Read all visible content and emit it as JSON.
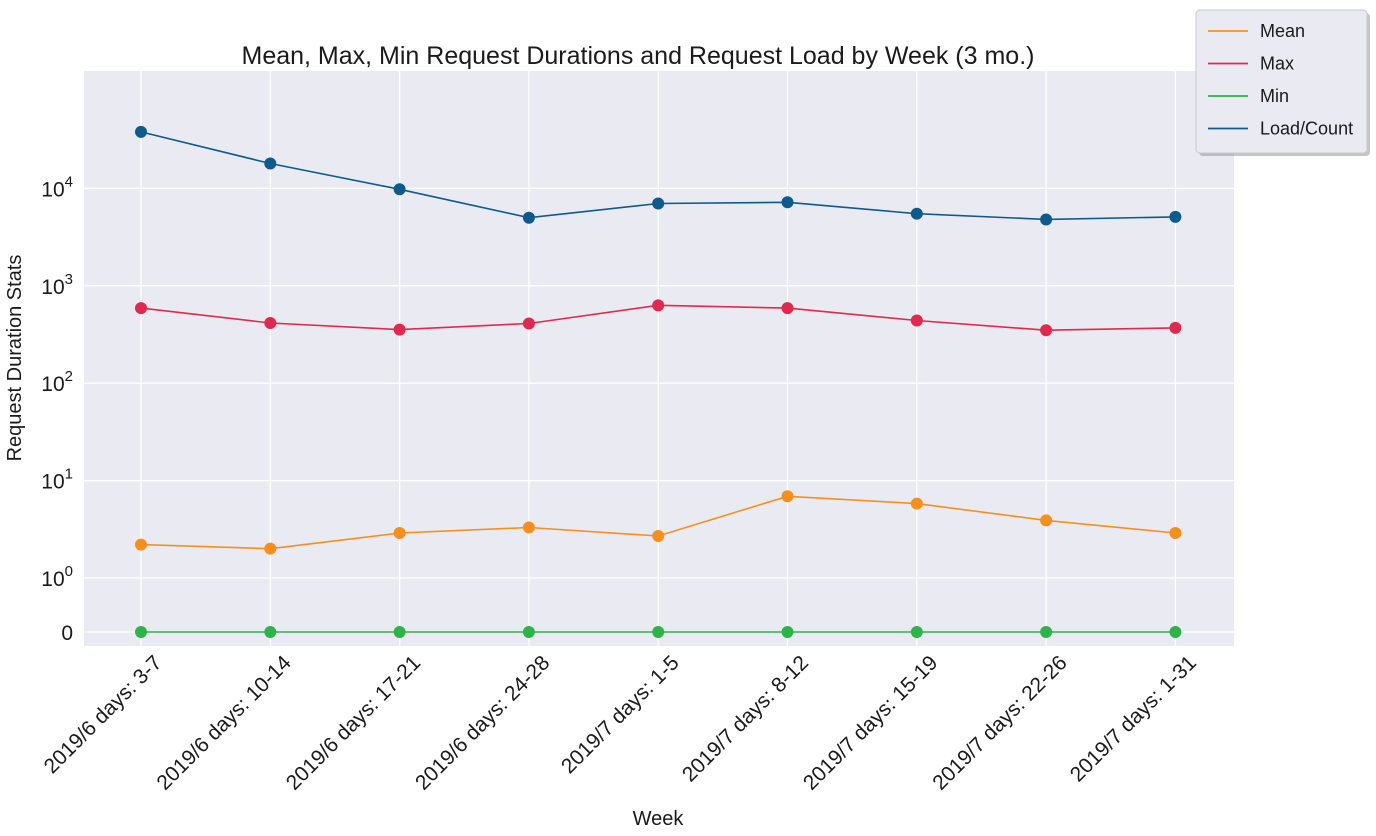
{
  "chart_data": {
    "type": "line",
    "title": "Mean, Max, Min Request Durations and Request Load by Week (3 mo.)",
    "xlabel": "Week",
    "ylabel": "Request Duration Stats",
    "yscale": "symlog",
    "y_ticks": [
      0,
      1,
      10,
      100,
      1000,
      10000
    ],
    "y_tick_labels": [
      {
        "base": "0",
        "exp": ""
      },
      {
        "base": "10",
        "exp": "0"
      },
      {
        "base": "10",
        "exp": "1"
      },
      {
        "base": "10",
        "exp": "2"
      },
      {
        "base": "10",
        "exp": "3"
      },
      {
        "base": "10",
        "exp": "4"
      }
    ],
    "categories": [
      "2019/6 days: 3-7",
      "2019/6 days: 10-14",
      "2019/6 days: 17-21",
      "2019/6 days: 24-28",
      "2019/7 days: 1-5",
      "2019/7 days: 8-12",
      "2019/7 days: 15-19",
      "2019/7 days: 22-26",
      "2019/7 days: 1-31"
    ],
    "grid": true,
    "legend_position": "top-right",
    "series": [
      {
        "name": "Mean",
        "color": "#f5901e",
        "values": [
          2.2,
          2.0,
          2.9,
          3.3,
          2.7,
          6.9,
          5.8,
          3.9,
          2.9
        ]
      },
      {
        "name": "Max",
        "color": "#e0294f",
        "values": [
          590,
          415,
          355,
          410,
          630,
          590,
          440,
          350,
          370
        ]
      },
      {
        "name": "Min",
        "color": "#2db34a",
        "values": [
          0,
          0,
          0,
          0,
          0,
          0,
          0,
          0,
          0
        ]
      },
      {
        "name": "Load/Count",
        "color": "#0d5a8c",
        "values": [
          38000,
          18000,
          9800,
          5000,
          7000,
          7200,
          5500,
          4800,
          5100
        ]
      }
    ]
  }
}
